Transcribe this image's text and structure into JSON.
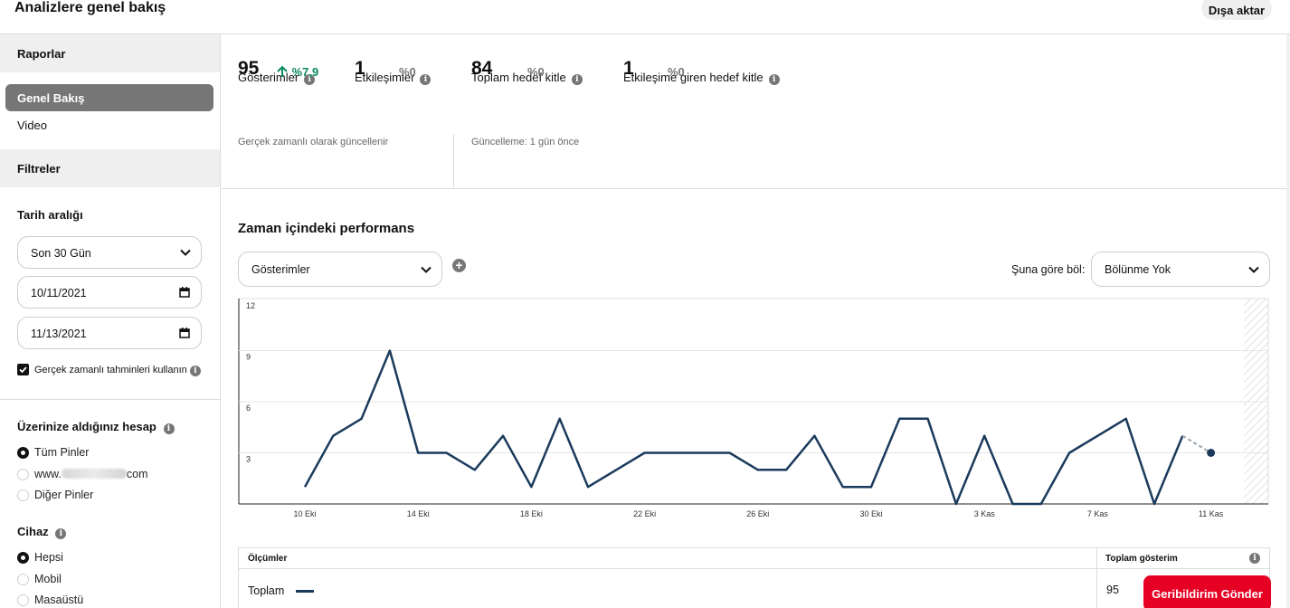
{
  "header": {
    "title": "Analizlere genel bakış",
    "export_label": "Dışa aktar"
  },
  "sidebar": {
    "reports_heading": "Raporlar",
    "nav": [
      {
        "label": "Genel Bakış",
        "active": true
      },
      {
        "label": "Video",
        "active": false
      }
    ],
    "filters_heading": "Filtreler",
    "date_range_label": "Tarih aralığı",
    "date_range_value": "Son 30 Gün",
    "start_date": "10/11/2021",
    "end_date": "11/13/2021",
    "realtime_checkbox_label": "Gerçek zamanlı tahminleri kullanın",
    "realtime_checked": true,
    "account_heading": "Üzerinize aldığınız hesap",
    "account_options": [
      {
        "label": "Tüm Pinler",
        "checked": true
      },
      {
        "label_prefix": "www.",
        "label_suffix": "com",
        "checked": false
      },
      {
        "label": "Diğer Pinler",
        "checked": false
      }
    ],
    "device_heading": "Cihaz",
    "device_options": [
      {
        "label": "Hepsi",
        "checked": true
      },
      {
        "label": "Mobil",
        "checked": false
      },
      {
        "label": "Masaüstü",
        "checked": false
      }
    ]
  },
  "metrics": [
    {
      "label": "Gösterimler",
      "value": "95",
      "change": "%7,9",
      "trend": "up"
    },
    {
      "label": "Etkileşimler",
      "value": "1",
      "change": "%0"
    },
    {
      "label": "Toplam hedef kitle",
      "value": "84",
      "change": "%0"
    },
    {
      "label": "Etkileşime giren hedef kitle",
      "value": "1",
      "change": "%0"
    }
  ],
  "notes": {
    "realtime": "Gerçek zamanlı olarak güncellenir",
    "updated": "Güncelleme: 1 gün önce"
  },
  "performance": {
    "title": "Zaman içindeki performans",
    "metric_select": "Gösterimler",
    "split_label": "Şuna göre böl:",
    "split_select": "Bölünme Yok"
  },
  "chart_data": {
    "type": "line",
    "x": [
      "10 Eki",
      "11 Eki",
      "12 Eki",
      "13 Eki",
      "14 Eki",
      "15 Eki",
      "16 Eki",
      "17 Eki",
      "18 Eki",
      "19 Eki",
      "20 Eki",
      "21 Eki",
      "22 Eki",
      "23 Eki",
      "24 Eki",
      "25 Eki",
      "26 Eki",
      "27 Eki",
      "28 Eki",
      "29 Eki",
      "30 Eki",
      "31 Eki",
      "1 Kas",
      "2 Kas",
      "3 Kas",
      "4 Kas",
      "5 Kas",
      "6 Kas",
      "7 Kas",
      "8 Kas",
      "9 Kas",
      "10 Kas",
      "11 Kas"
    ],
    "series": [
      {
        "values": [
          1,
          4,
          5,
          9,
          3,
          3,
          2,
          4,
          1,
          5,
          1,
          2,
          3,
          3,
          3,
          3,
          2,
          2,
          4,
          1,
          1,
          5,
          5,
          0,
          4,
          0,
          0,
          3,
          4,
          5,
          0,
          4,
          3
        ]
      }
    ],
    "estimated_last_point": true,
    "x_ticks": [
      "10 Eki",
      "14 Eki",
      "18 Eki",
      "22 Eki",
      "26 Eki",
      "30 Eki",
      "3 Kas",
      "7 Kas",
      "11 Kas"
    ],
    "y_ticks": [
      3,
      6,
      9,
      12
    ],
    "ylim": [
      0,
      12
    ],
    "grid": true,
    "line_color": "#1a3a5c"
  },
  "table": {
    "col_metrics": "Ölçümler",
    "col_total": "Toplam gösterim",
    "row_label": "Toplam",
    "row_total": "95"
  },
  "feedback_label": "Geribildirim Gönder"
}
